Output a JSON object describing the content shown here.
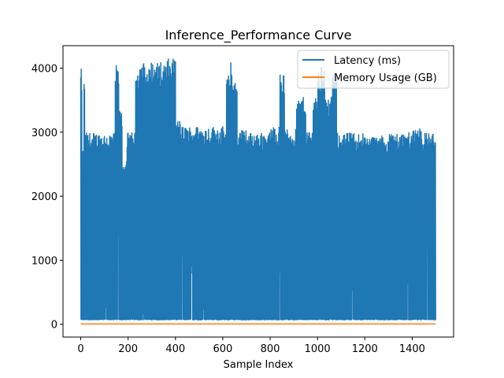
{
  "chart_data": {
    "type": "line",
    "title": "Inference_Performance Curve",
    "xlabel": "Sample Index",
    "ylabel": "",
    "xlim": [
      -75,
      1575
    ],
    "ylim": [
      -200,
      4350
    ],
    "x_ticks": [
      0,
      200,
      400,
      600,
      800,
      1000,
      1200,
      1400
    ],
    "y_ticks": [
      0,
      1000,
      2000,
      3000,
      4000
    ],
    "legend_position": "top-right",
    "series": [
      {
        "name": "Latency (ms)",
        "color": "#1f77b4",
        "n_points": 1500,
        "low_baseline": 60,
        "segments": [
          {
            "x": [
              0,
              4
            ],
            "peak": 3990
          },
          {
            "x": [
              5,
              12
            ],
            "peak": 2750
          },
          {
            "x": [
              13,
              16
            ],
            "peak": 3960
          },
          {
            "x": [
              17,
              145
            ],
            "peak": 3000
          },
          {
            "x": [
              146,
              160
            ],
            "peak": 4050
          },
          {
            "x": [
              161,
              175
            ],
            "peak": 3350
          },
          {
            "x": [
              176,
              195
            ],
            "peak": 2550
          },
          {
            "x": [
              196,
              230
            ],
            "peak": 3000
          },
          {
            "x": [
              231,
              245
            ],
            "peak": 4050
          },
          {
            "x": [
              246,
              270
            ],
            "peak": 4100
          },
          {
            "x": [
              271,
              295
            ],
            "peak": 4000
          },
          {
            "x": [
              296,
              300
            ],
            "peak": 4150
          },
          {
            "x": [
              301,
              340
            ],
            "peak": 4100
          },
          {
            "x": [
              341,
              345
            ],
            "peak": 3900
          },
          {
            "x": [
              346,
              365
            ],
            "peak": 4100
          },
          {
            "x": [
              366,
              400
            ],
            "peak": 4150
          },
          {
            "x": [
              401,
              420
            ],
            "peak": 3200
          },
          {
            "x": [
              421,
              600
            ],
            "peak": 3100
          },
          {
            "x": [
              601,
              615
            ],
            "peak": 3050
          },
          {
            "x": [
              616,
              630
            ],
            "peak": 3900
          },
          {
            "x": [
              631,
              640
            ],
            "peak": 4100
          },
          {
            "x": [
              641,
              660
            ],
            "peak": 3800
          },
          {
            "x": [
              661,
              700
            ],
            "peak": 3050
          },
          {
            "x": [
              701,
              800
            ],
            "peak": 3000
          },
          {
            "x": [
              801,
              840
            ],
            "peak": 3100
          },
          {
            "x": [
              841,
              860
            ],
            "peak": 3950
          },
          {
            "x": [
              861,
              910
            ],
            "peak": 3050
          },
          {
            "x": [
              911,
              950
            ],
            "peak": 3550
          },
          {
            "x": [
              951,
              980
            ],
            "peak": 3050
          },
          {
            "x": [
              981,
              1000
            ],
            "peak": 3600
          },
          {
            "x": [
              1001,
              1015
            ],
            "peak": 3950
          },
          {
            "x": [
              1016,
              1030
            ],
            "peak": 4050
          },
          {
            "x": [
              1031,
              1060
            ],
            "peak": 3550
          },
          {
            "x": [
              1061,
              1080
            ],
            "peak": 3900
          },
          {
            "x": [
              1081,
              1200
            ],
            "peak": 3000
          },
          {
            "x": [
              1201,
              1300
            ],
            "peak": 2950
          },
          {
            "x": [
              1301,
              1400
            ],
            "peak": 3000
          },
          {
            "x": [
              1401,
              1440
            ],
            "peak": 3100
          },
          {
            "x": [
              1441,
              1499
            ],
            "peak": 3000
          }
        ]
      },
      {
        "name": "Memory Usage (GB)",
        "color": "#ff7f0e",
        "n_points": 1500,
        "value": 5
      }
    ]
  }
}
